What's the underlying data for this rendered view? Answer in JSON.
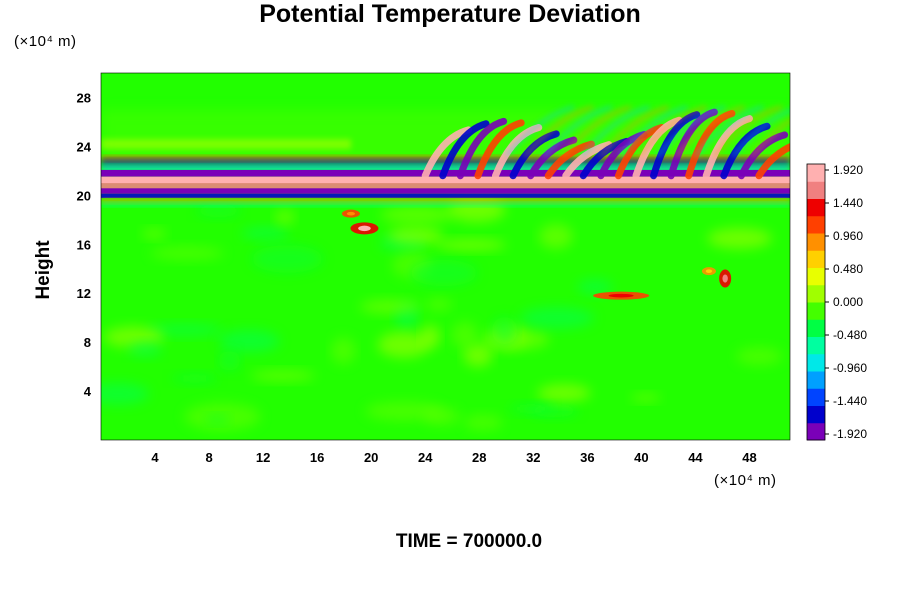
{
  "chart_data": {
    "type": "heatmap",
    "title": "Potential Temperature Deviation",
    "ylabel": "Height",
    "x_unit": "(×10⁴ m)",
    "y_unit": "(×10⁴ m)",
    "xlim": [
      0,
      51
    ],
    "ylim": [
      0,
      30
    ],
    "x_ticks": [
      4,
      8,
      12,
      16,
      20,
      24,
      28,
      32,
      36,
      40,
      44,
      48
    ],
    "y_ticks": [
      4,
      8,
      12,
      16,
      20,
      24,
      28
    ],
    "x_tick_labels": [
      "4",
      "8",
      "12",
      "16",
      "20",
      "24",
      "28",
      "32",
      "36",
      "40",
      "44",
      "48"
    ],
    "y_tick_labels": [
      "4",
      "8",
      "12",
      "16",
      "20",
      "24",
      "28"
    ],
    "colorbar": {
      "min": -1.92,
      "max": 1.92,
      "labels": [
        "1.920",
        "1.440",
        "0.960",
        "0.480",
        "0.000",
        "-0.480",
        "-0.960",
        "-1.440",
        "-1.920"
      ],
      "colors": [
        "#7a00b8",
        "#0000cc",
        "#0044ff",
        "#00a0ff",
        "#00e8e8",
        "#00ffa0",
        "#00ff44",
        "#44ff00",
        "#a0ff00",
        "#e8ff00",
        "#ffd000",
        "#ff9000",
        "#ff4000",
        "#ee0000",
        "#f08080",
        "#ffb0b0"
      ]
    },
    "features": [
      {
        "name": "primary band",
        "y_center": 21,
        "x_range": [
          0,
          51
        ],
        "value": "positive/negative alternating layers"
      },
      {
        "name": "wave region",
        "y_range": [
          22,
          27
        ],
        "x_range": [
          24,
          50
        ],
        "value": "oscillating -1.92 to 1.92"
      },
      {
        "name": "anomaly",
        "x": 19.5,
        "y": 17.3,
        "value": 1.9
      },
      {
        "name": "anomaly",
        "x": 38.5,
        "y": 11.8,
        "value": 1.4
      },
      {
        "name": "anomaly",
        "x": 46.2,
        "y": 13.2,
        "value": 1.6
      }
    ]
  },
  "footer": {
    "time_text": "TIME = 700000.0"
  }
}
